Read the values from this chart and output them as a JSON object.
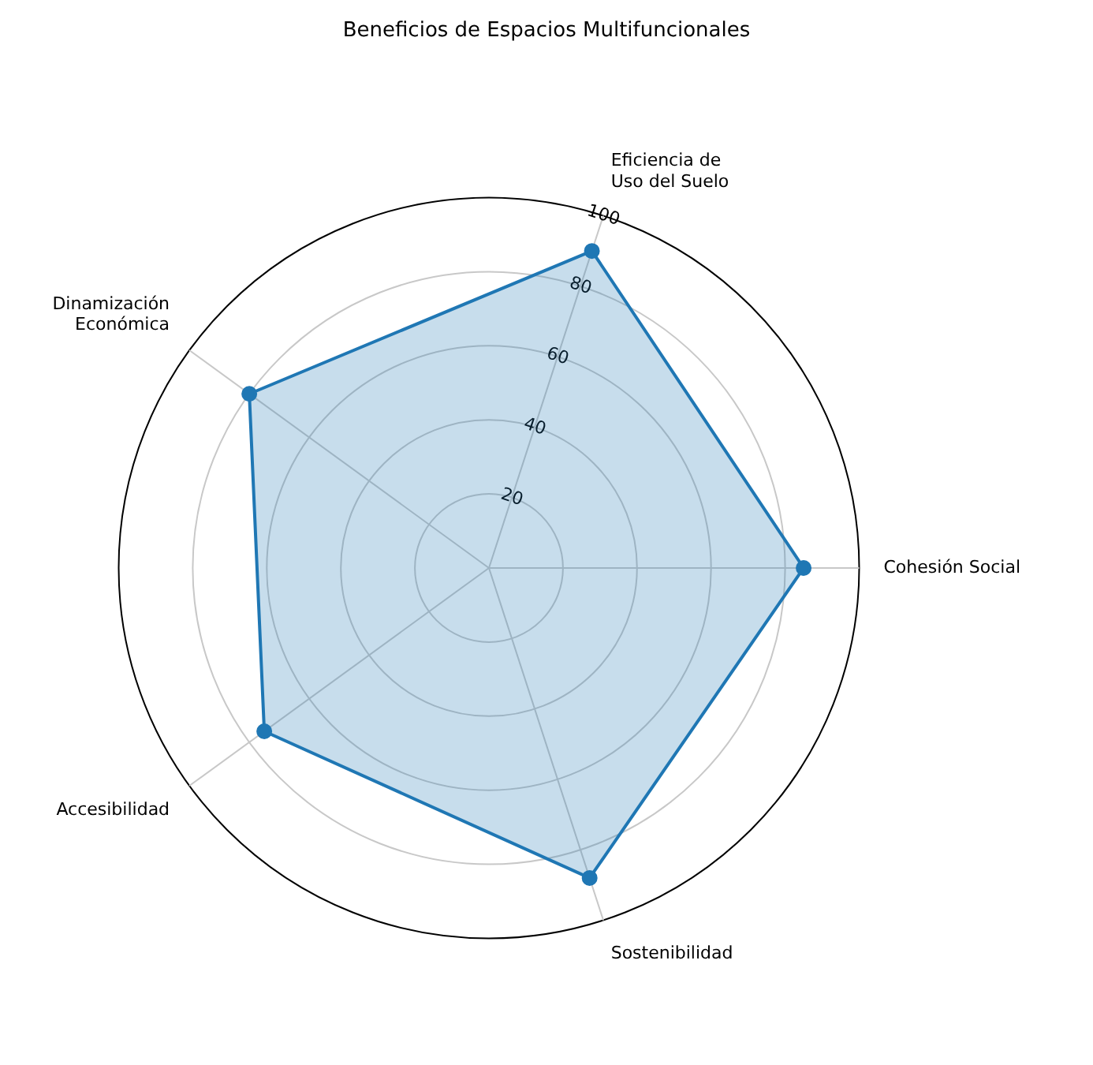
{
  "chart_data": {
    "type": "radar",
    "title": "Beneficios de Espacios Multifuncionales",
    "categories": [
      "Eficiencia de\nUso del Suelo",
      "Cohesión Social",
      "Sostenibilidad",
      "Accesibilidad",
      "Dinamización\nEconómica"
    ],
    "series": [
      {
        "color": "#1f77b4",
        "values": [
          90,
          85,
          88,
          75,
          80
        ]
      }
    ],
    "ylim": [
      0,
      100
    ],
    "yticks": [
      20,
      40,
      60,
      80,
      100
    ],
    "grid": true,
    "marker": "circle",
    "line_style": "solid"
  }
}
